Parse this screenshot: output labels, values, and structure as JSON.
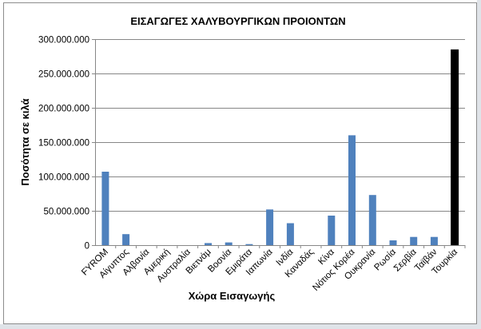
{
  "chart_data": {
    "type": "bar",
    "title": "ΕΙΣΑΓΩΓΕΣ ΧΑΛΥΒΟΥΡΓΙΚΩΝ ΠΡΟΙΟΝΤΩΝ",
    "xlabel": "Χώρα Εισαγωγής",
    "ylabel": "Ποσότητα σε κιλά",
    "categories": [
      "FYROM",
      "Αίγυπτος",
      "Αλβανία",
      "Αμερική",
      "Αυστραλία",
      "Βιετνάμ",
      "Βοσνία",
      "Εμιράτα",
      "Ιαπωνία",
      "Ινδία",
      "Καναδάς",
      "Κίνα",
      "Νότιος Κορέα",
      "Ουκρανία",
      "Ρωσία",
      "Σερβία",
      "Ταϊβάν",
      "Τουρκία"
    ],
    "values": [
      107000000,
      16000000,
      0,
      0,
      0,
      3000000,
      4000000,
      1500000,
      52000000,
      32000000,
      0,
      43000000,
      160000000,
      73000000,
      7000000,
      12000000,
      12000000,
      285000000
    ],
    "ylim": [
      0,
      300000000
    ],
    "yticks": [
      0,
      50000000,
      100000000,
      150000000,
      200000000,
      250000000,
      300000000
    ],
    "ytick_labels": [
      "0",
      "50.000.000",
      "100.000.000",
      "150.000.000",
      "200.000.000",
      "250.000.000",
      "300.000.000"
    ],
    "grid": true,
    "colors": {
      "bar": "#4f81bd",
      "highlight": "#000000",
      "grid": "#878787",
      "axis": "#878787"
    },
    "highlight_category": "Τουρκία"
  }
}
